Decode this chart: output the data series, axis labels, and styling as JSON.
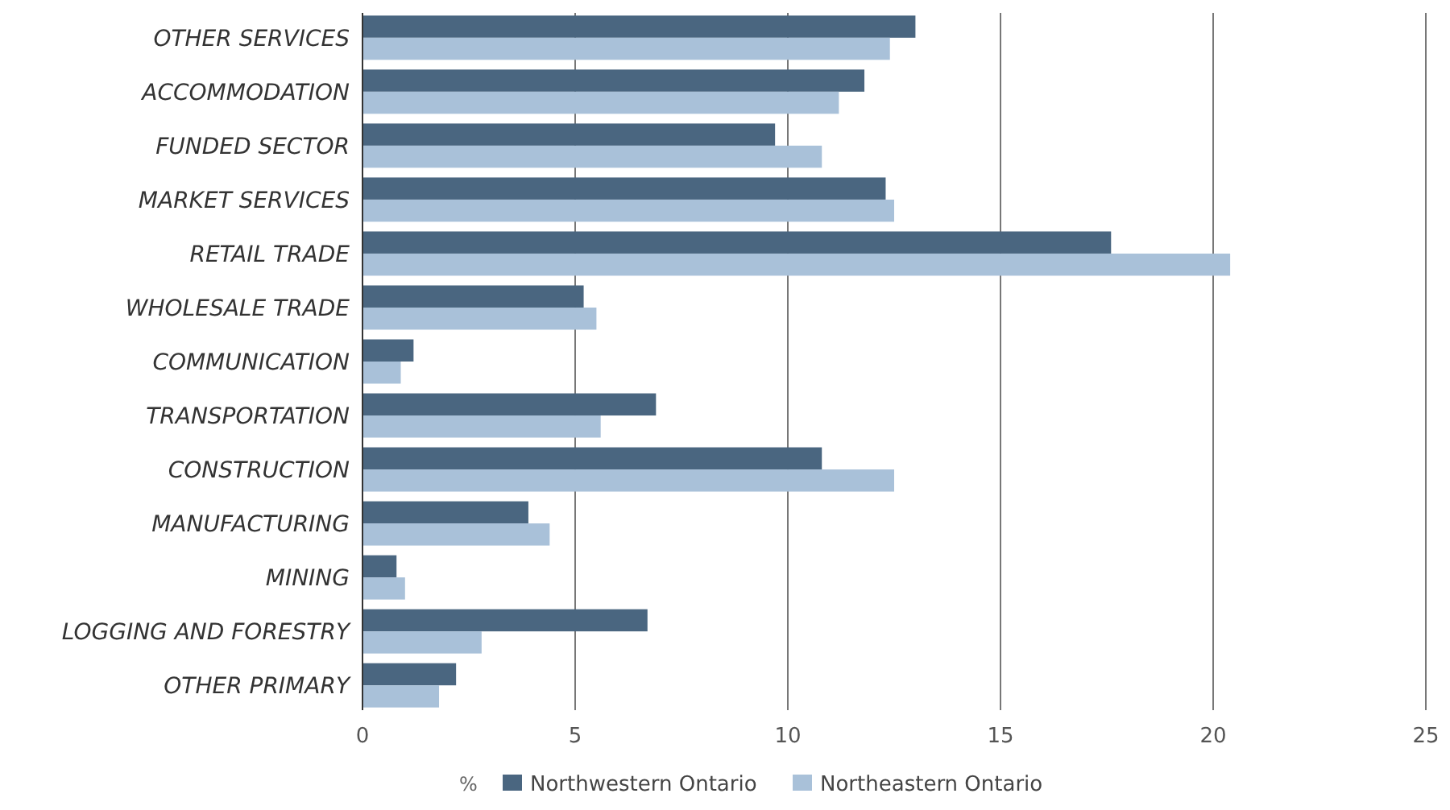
{
  "chart_data": {
    "type": "bar",
    "orientation": "horizontal",
    "xlabel": "%",
    "categories": [
      "OTHER SERVICES",
      "ACCOMMODATION",
      "FUNDED SECTOR",
      "MARKET SERVICES",
      "RETAIL TRADE",
      "WHOLESALE TRADE",
      "COMMUNICATION",
      "TRANSPORTATION",
      "CONSTRUCTION",
      "MANUFACTURING",
      "MINING",
      "LOGGING AND FORESTRY",
      "OTHER PRIMARY"
    ],
    "series": [
      {
        "name": "Northwestern Ontario",
        "color": "#4a6680",
        "values": [
          13.0,
          11.8,
          9.7,
          12.3,
          17.6,
          5.2,
          1.2,
          6.9,
          10.8,
          3.9,
          0.8,
          6.7,
          2.2
        ]
      },
      {
        "name": "Northeastern Ontario",
        "color": "#a9c1d9",
        "values": [
          12.4,
          11.2,
          10.8,
          12.5,
          20.4,
          5.5,
          0.9,
          5.6,
          12.5,
          4.4,
          1.0,
          2.8,
          1.8
        ]
      }
    ],
    "xlim": [
      0,
      25
    ],
    "xticks": [
      0,
      5,
      10,
      15,
      20,
      25
    ],
    "grid": "x",
    "legend": "bottom"
  }
}
